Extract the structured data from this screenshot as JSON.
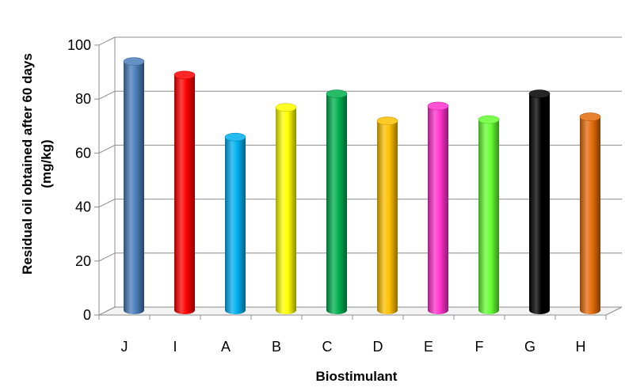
{
  "chart_data": {
    "type": "bar",
    "title": "",
    "xlabel": "Biostimulant",
    "ylabel_line1": "Residual oil  obtained after 60 days",
    "ylabel_line2": "(mg/kg)",
    "categories": [
      "J",
      "I",
      "A",
      "B",
      "C",
      "D",
      "E",
      "F",
      "G",
      "H"
    ],
    "values": [
      91,
      86,
      63,
      74,
      79,
      69,
      74.5,
      69.5,
      79,
      70.5
    ],
    "colors": [
      "#4A7EBB",
      "#FF0000",
      "#00B0F0",
      "#FFFF00",
      "#00B050",
      "#FFC000",
      "#FF33CC",
      "#66FF33",
      "#000000",
      "#E46C0A"
    ],
    "ylim": [
      0,
      100
    ],
    "yticks": [
      "0",
      "20",
      "40",
      "60",
      "80",
      "100"
    ],
    "grid": true,
    "legend": "none",
    "style": "3d-cylinder"
  }
}
